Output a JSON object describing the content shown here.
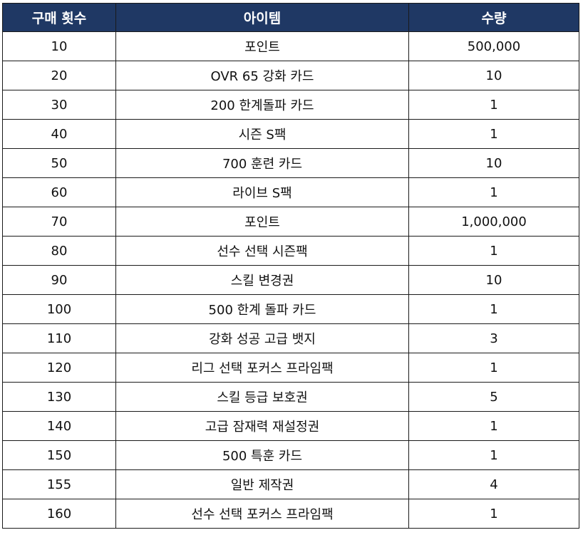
{
  "table": {
    "header_bg": "#1f3864",
    "headers": {
      "count": "구매 횟수",
      "item": "아이템",
      "quantity": "수량"
    },
    "rows": [
      {
        "count": "10",
        "item": "포인트",
        "quantity": "500,000"
      },
      {
        "count": "20",
        "item": "OVR 65 강화 카드",
        "quantity": "10"
      },
      {
        "count": "30",
        "item": "200 한계돌파 카드",
        "quantity": "1"
      },
      {
        "count": "40",
        "item": "시즌 S팩",
        "quantity": "1"
      },
      {
        "count": "50",
        "item": "700 훈련 카드",
        "quantity": "10"
      },
      {
        "count": "60",
        "item": "라이브 S팩",
        "quantity": "1"
      },
      {
        "count": "70",
        "item": "포인트",
        "quantity": "1,000,000"
      },
      {
        "count": "80",
        "item": "선수 선택 시즌팩",
        "quantity": "1"
      },
      {
        "count": "90",
        "item": "스킬 변경권",
        "quantity": "10"
      },
      {
        "count": "100",
        "item": "500 한계 돌파 카드",
        "quantity": "1"
      },
      {
        "count": "110",
        "item": "강화 성공 고급 뱃지",
        "quantity": "3"
      },
      {
        "count": "120",
        "item": "리그 선택 포커스 프라임팩",
        "quantity": "1"
      },
      {
        "count": "130",
        "item": "스킬 등급 보호권",
        "quantity": "5"
      },
      {
        "count": "140",
        "item": "고급 잠재력 재설정권",
        "quantity": "1"
      },
      {
        "count": "150",
        "item": "500 특훈 카드",
        "quantity": "1"
      },
      {
        "count": "155",
        "item": "일반 제작권",
        "quantity": "4"
      },
      {
        "count": "160",
        "item": "선수 선택 포커스 프라임팩",
        "quantity": "1"
      }
    ]
  }
}
